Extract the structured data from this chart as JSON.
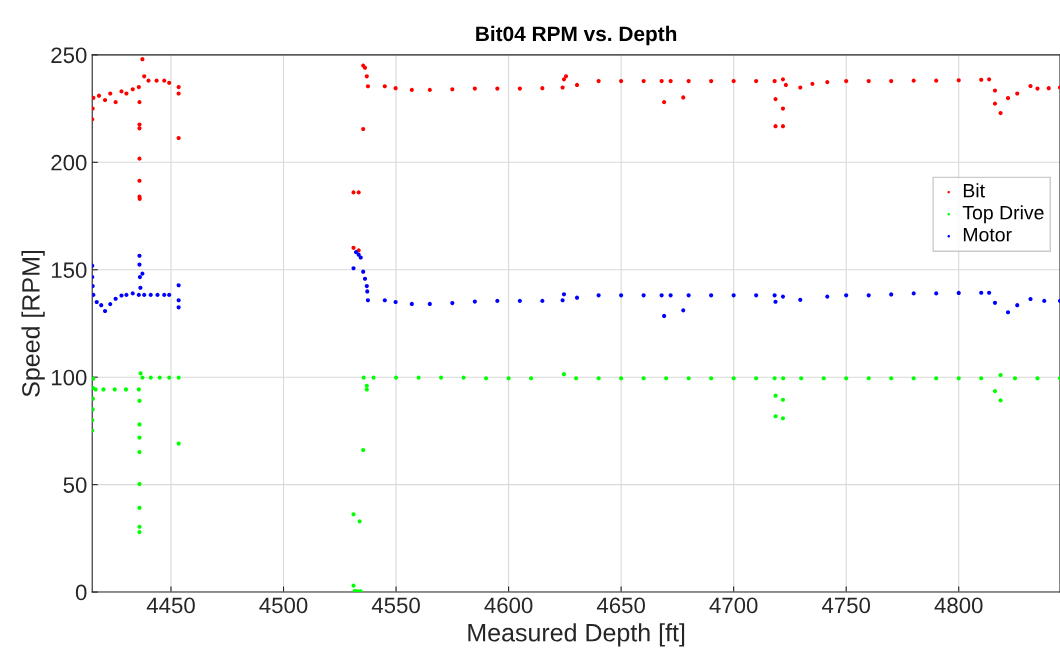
{
  "chart_data": {
    "type": "scatter",
    "title": "Bit04 RPM vs. Depth",
    "xlabel": "Measured Depth [ft]",
    "ylabel": "Speed [RPM]",
    "xlim": [
      4415,
      4845
    ],
    "xticks": [
      4450,
      4500,
      4550,
      4600,
      4650,
      4700,
      4750,
      4800
    ],
    "ylim": [
      0,
      250
    ],
    "yticks": [
      0,
      50,
      100,
      150,
      200,
      250
    ],
    "grid": true,
    "legend": "top right",
    "marker": "circle",
    "series": [
      {
        "name": "Bit",
        "color": "#ff0000",
        "x": [
          4415,
          4415.2,
          4415.5,
          4418,
          4420.7,
          4423,
          4425.4,
          4428,
          4430.2,
          4433,
          4435.7,
          4436,
          4436,
          4436,
          4436,
          4436,
          4436,
          4436.1,
          4437.3,
          4438.1,
          4440,
          4443.6,
          4447,
          4449.2,
          4453.4,
          4453.4,
          4453.4,
          4531.1,
          4533.4,
          4531.1,
          4533.4,
          4535.4,
          4535.4,
          4536.2,
          4537,
          4537.5,
          4545,
          4549.8,
          4557,
          4565,
          4575,
          4585,
          4595,
          4605,
          4615,
          4624,
          4624.6,
          4625.5,
          4630.4,
          4640,
          4650,
          4660,
          4668,
          4669.1,
          4672,
          4677.6,
          4680,
          4690,
          4700,
          4710,
          4718.2,
          4718.6,
          4721.9,
          4718.6,
          4721.9,
          4721.9,
          4723.2,
          4729.6,
          4735,
          4741.6,
          4750,
          4760,
          4770,
          4780,
          4790,
          4800,
          4810,
          4813.5,
          4816.1,
          4816.1,
          4818.6,
          4821.9,
          4826,
          4831.9,
          4835,
          4840,
          4845
        ],
        "values": [
          220,
          225,
          230,
          231,
          229,
          232,
          228,
          233,
          232,
          234,
          235,
          228,
          217.6,
          215.8,
          201.7,
          191.4,
          184,
          183,
          248,
          240,
          238,
          238,
          238,
          237,
          235,
          232,
          211.3,
          186,
          186,
          160.2,
          159,
          215.5,
          245,
          244,
          240,
          235.4,
          235.4,
          234.5,
          233.7,
          233.7,
          234,
          234.3,
          234.3,
          234.3,
          234.5,
          234.8,
          238.6,
          240,
          236,
          237.8,
          237.8,
          237.8,
          237.8,
          228,
          237.8,
          230.2,
          237.8,
          237.8,
          237.8,
          237.8,
          237.8,
          229.4,
          225,
          216.8,
          216.8,
          238.6,
          236,
          234.8,
          236.5,
          237.3,
          237.8,
          237.8,
          237.8,
          238,
          238,
          238.2,
          238.4,
          238.6,
          233.4,
          227.3,
          222.9,
          229.9,
          232,
          235.5,
          234.3,
          234.5,
          234.8
        ]
      },
      {
        "name": "Top Drive",
        "color": "#00ff00",
        "x": [
          4415,
          4415,
          4415.2,
          4415.3,
          4415.3,
          4415.4,
          4416.5,
          4420,
          4425,
          4430,
          4435.7,
          4436,
          4436,
          4436,
          4436,
          4436,
          4436,
          4436,
          4436,
          4436.5,
          4437.3,
          4441,
          4445,
          4449.2,
          4453.4,
          4453.4,
          4531.1,
          4533.8,
          4531.1,
          4531.6,
          4532.5,
          4533.4,
          4534.3,
          4535.4,
          4537,
          4537,
          4535.6,
          4540,
          4550,
          4560,
          4570,
          4580,
          4590,
          4600,
          4610,
          4624.6,
          4630,
          4640,
          4650,
          4660,
          4670,
          4680,
          4690,
          4700,
          4710,
          4718.2,
          4718.6,
          4721.9,
          4718.6,
          4721.9,
          4722,
          4730,
          4740,
          4750,
          4760,
          4770,
          4780,
          4790,
          4800,
          4810,
          4816.1,
          4818.6,
          4818.6,
          4825,
          4835,
          4845
        ],
        "values": [
          75.2,
          80,
          85,
          90,
          95,
          99.3,
          94.3,
          94.3,
          94.3,
          94.3,
          94.3,
          89,
          78,
          71.9,
          65.2,
          50.3,
          39.2,
          30.4,
          27.9,
          101.8,
          99.8,
          99.8,
          99.8,
          99.8,
          99.8,
          69.1,
          36.2,
          32.9,
          3,
          0.5,
          0.3,
          0.3,
          0.3,
          66.1,
          96,
          94.3,
          99.8,
          99.8,
          99.8,
          99.8,
          99.8,
          99.8,
          99.5,
          99.5,
          99.5,
          101.4,
          99.5,
          99.5,
          99.5,
          99.5,
          99.5,
          99.5,
          99.5,
          99.5,
          99.5,
          99.5,
          91.4,
          89.5,
          81.8,
          80.9,
          99.5,
          99.5,
          99.5,
          99.5,
          99.5,
          99.5,
          99.5,
          99.5,
          99.5,
          99.5,
          93.5,
          101,
          89.2,
          99.5,
          99.5,
          99.5
        ]
      },
      {
        "name": "Motor",
        "color": "#0000ff",
        "x": [
          4415,
          4415,
          4415.2,
          4415.5,
          4417,
          4419,
          4420.7,
          4423,
          4425.4,
          4428,
          4430.2,
          4433,
          4435.7,
          4436,
          4436,
          4436.2,
          4436.4,
          4437.3,
          4438.1,
          4441,
          4444,
          4447,
          4449.2,
          4453.4,
          4453.4,
          4453.4,
          4531.1,
          4532.2,
          4533.4,
          4534.3,
          4535.4,
          4536.2,
          4537,
          4537.2,
          4537.5,
          4545,
          4549.8,
          4557,
          4565,
          4575,
          4585,
          4595,
          4605,
          4615,
          4624,
          4624.6,
          4630.4,
          4640,
          4650,
          4660,
          4668,
          4669.1,
          4672,
          4677.6,
          4680,
          4690,
          4700,
          4710,
          4718.2,
          4718.6,
          4721.9,
          4729.6,
          4741.6,
          4750,
          4760,
          4770,
          4780,
          4790,
          4800,
          4810,
          4813.5,
          4816.1,
          4821.9,
          4826,
          4831.9,
          4838,
          4845
        ],
        "values": [
          151.9,
          146.6,
          142.4,
          138.3,
          135,
          133.5,
          130.8,
          134,
          136.5,
          138,
          138.3,
          139,
          138.3,
          156.5,
          152.4,
          146.6,
          141.6,
          148.2,
          138.3,
          138.3,
          138.3,
          138.3,
          138.3,
          142.8,
          135.8,
          132.5,
          150.7,
          158.2,
          157,
          155.7,
          149.1,
          145.8,
          142.4,
          139.9,
          135.8,
          135.8,
          135,
          134.1,
          134.1,
          134.5,
          135.2,
          135.5,
          135.5,
          135.5,
          135.8,
          138.6,
          137,
          138.1,
          138.1,
          138.1,
          138.1,
          128.5,
          138.1,
          131.1,
          138.1,
          138.1,
          138.1,
          138.1,
          138.1,
          135.1,
          137.5,
          136,
          137.5,
          138.1,
          138.1,
          138.5,
          139,
          139,
          139.2,
          139.3,
          139.3,
          134.6,
          130.2,
          133.5,
          136.4,
          135.5,
          135.5
        ]
      }
    ]
  }
}
